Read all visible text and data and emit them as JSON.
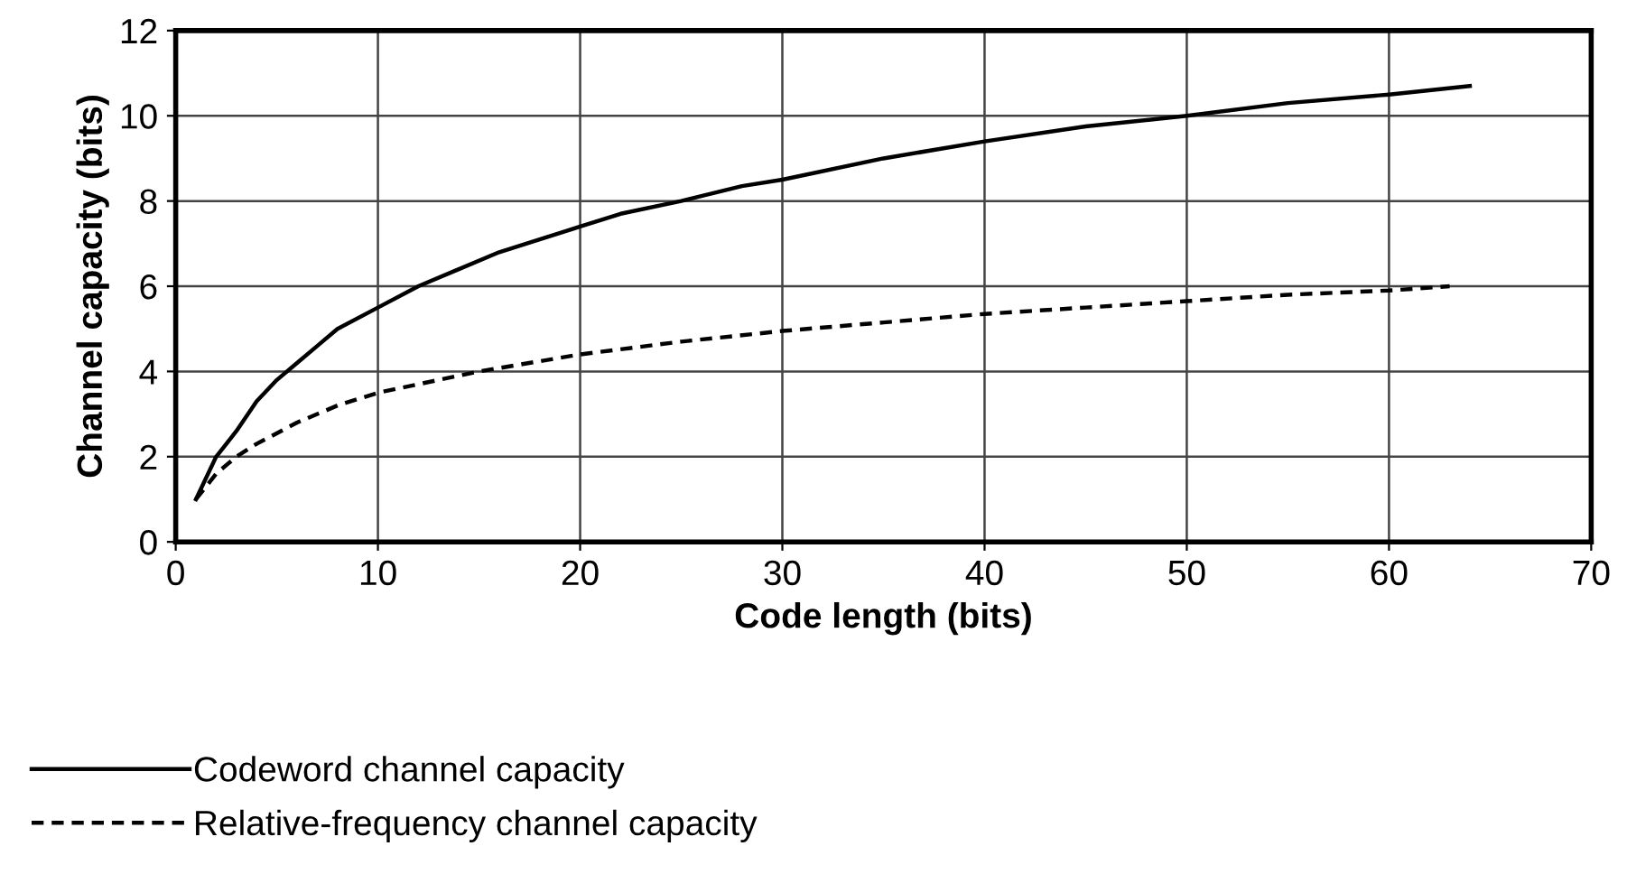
{
  "chart_data": {
    "type": "line",
    "xlabel": "Code length (bits)",
    "ylabel": "Channel capacity (bits)",
    "xlim": [
      0,
      70
    ],
    "xticks": [
      0,
      10,
      20,
      30,
      40,
      50,
      60,
      70
    ],
    "ylim": [
      0,
      12
    ],
    "yticks": [
      0,
      2,
      4,
      6,
      8,
      10,
      12
    ],
    "grid": true,
    "legend": "bottom left",
    "series": [
      {
        "name": "Codeword channel capacity",
        "color": "#000000",
        "line_style": "solid",
        "x": [
          1,
          2,
          3,
          4,
          5,
          6,
          7,
          8,
          10,
          12,
          14,
          16,
          18,
          20,
          22,
          25,
          28,
          30,
          35,
          40,
          45,
          50,
          55,
          60,
          64
        ],
        "values": [
          1,
          2,
          2.6,
          3.3,
          3.8,
          4.2,
          4.6,
          5.0,
          5.5,
          6.0,
          6.4,
          6.8,
          7.1,
          7.4,
          7.7,
          8.0,
          8.35,
          8.5,
          9.0,
          9.4,
          9.75,
          10.0,
          10.3,
          10.5,
          10.7
        ]
      },
      {
        "name": "Relative-frequency channel capacity",
        "color": "#000000",
        "line_style": "dashed",
        "x": [
          1,
          2,
          3,
          4,
          6,
          8,
          10,
          12,
          15,
          20,
          25,
          30,
          35,
          40,
          45,
          50,
          55,
          60,
          63
        ],
        "values": [
          1,
          1.6,
          2.0,
          2.3,
          2.8,
          3.2,
          3.5,
          3.7,
          4.0,
          4.4,
          4.7,
          4.95,
          5.15,
          5.35,
          5.5,
          5.65,
          5.8,
          5.9,
          6.0
        ]
      }
    ]
  }
}
